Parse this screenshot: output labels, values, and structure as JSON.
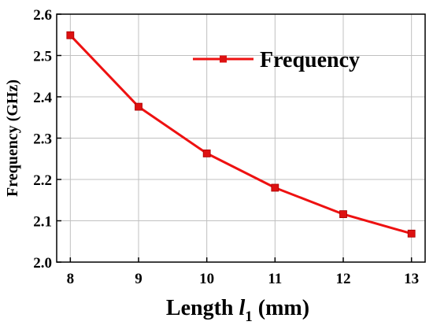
{
  "chart_data": {
    "type": "line",
    "title": "",
    "xlabel": {
      "main": "Length ",
      "var": "l",
      "sub": "1",
      "unit": " (mm)"
    },
    "ylabel": "Frequency (GHz)",
    "x": [
      8,
      9,
      10,
      11,
      12,
      13
    ],
    "series": [
      {
        "name": "Frequency",
        "values": [
          2.549,
          2.376,
          2.263,
          2.18,
          2.116,
          2.069
        ]
      }
    ],
    "xlim": [
      7.8,
      13.2
    ],
    "ylim": [
      2.0,
      2.6
    ],
    "xticks": [
      8,
      9,
      10,
      11,
      12,
      13
    ],
    "yticks": [
      2.0,
      2.1,
      2.2,
      2.3,
      2.4,
      2.5,
      2.6
    ],
    "ytick_labels": [
      "2.0",
      "2.1",
      "2.2",
      "2.3",
      "2.4",
      "2.5",
      "2.6"
    ],
    "grid": true,
    "legend_position": "top-right",
    "colors": {
      "line": "#ee1111",
      "marker": "#dd1111",
      "grid": "#c0c0c0",
      "axis": "#000000"
    }
  }
}
